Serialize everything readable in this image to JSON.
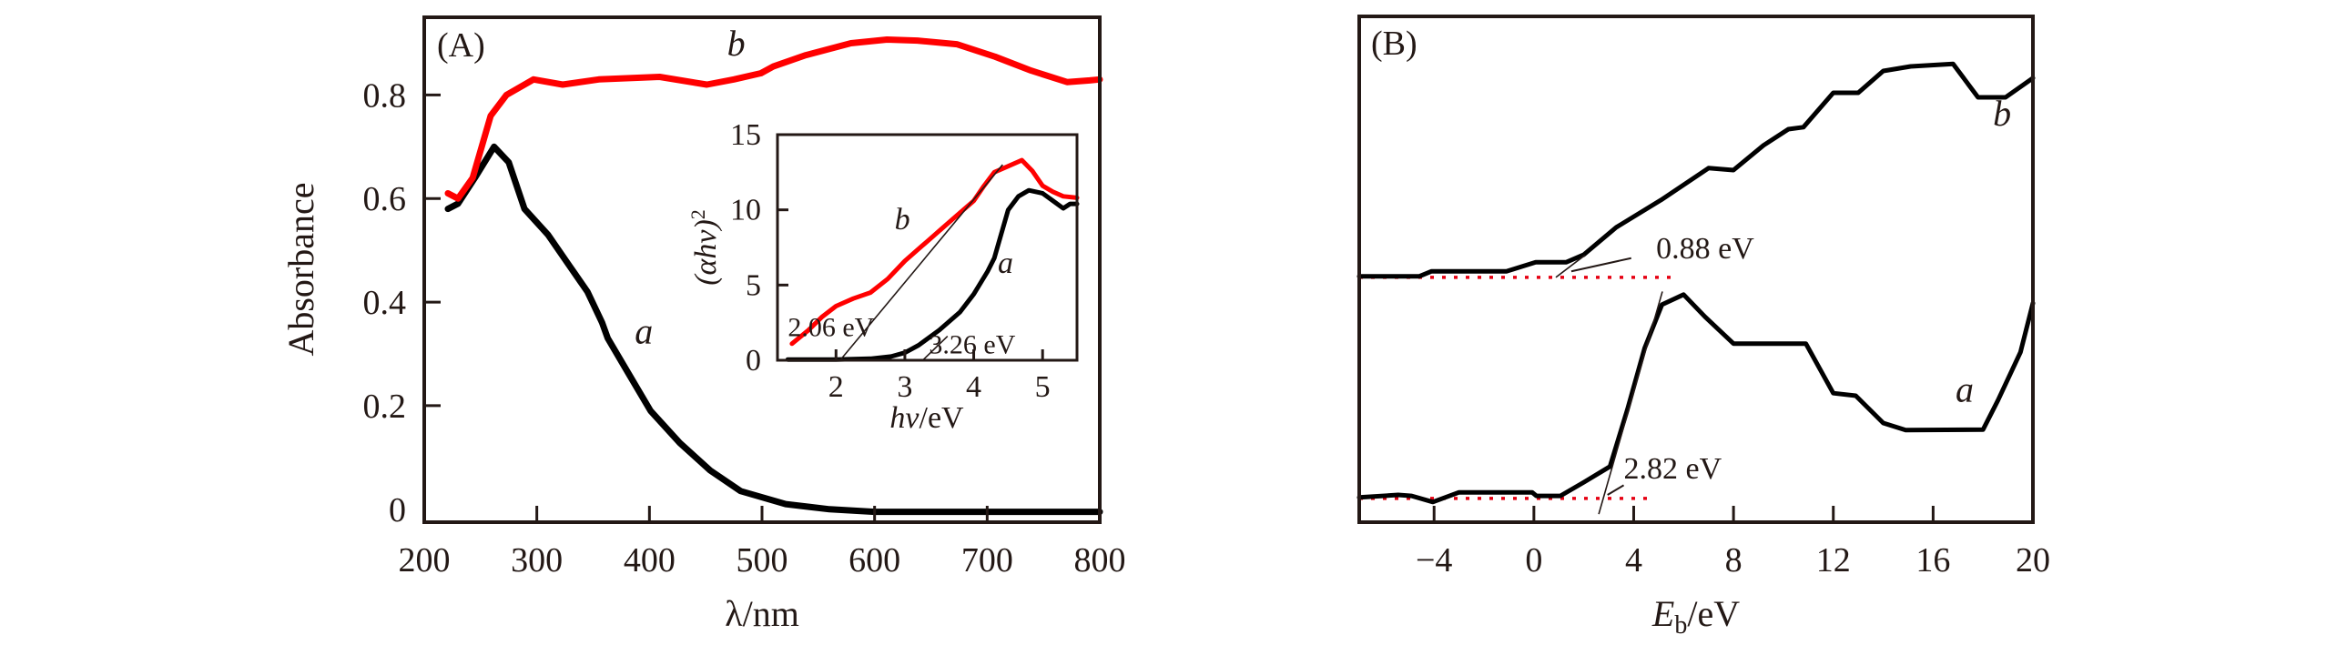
{
  "colors": {
    "axis": "#231815",
    "series_black": "#000000",
    "series_red": "#ff0000",
    "baseline_red": "#e60012"
  },
  "chart_data": [
    {
      "id": "panel-A",
      "type": "line",
      "panel_label": "(A)",
      "title": "",
      "xlabel": "λ/nm",
      "ylabel": "Absorbance",
      "xlim": [
        200,
        800
      ],
      "ylim": [
        -0.025,
        0.95
      ],
      "xticks": [
        200,
        300,
        400,
        500,
        600,
        700,
        800
      ],
      "yticks": [
        0,
        0.2,
        0.4,
        0.6,
        0.8
      ],
      "ytick_labels": [
        "0",
        "0.2",
        "0.4",
        "0.6",
        "0.8"
      ],
      "grid": false,
      "series": [
        {
          "name": "a",
          "color": "#000000",
          "x": [
            221,
            230,
            245,
            262,
            275,
            289,
            310,
            329,
            345,
            358,
            363,
            382,
            401,
            427,
            454,
            481,
            521,
            560,
            600,
            650,
            700,
            750,
            800
          ],
          "y": [
            0.58,
            0.59,
            0.64,
            0.7,
            0.67,
            0.58,
            0.53,
            0.47,
            0.42,
            0.36,
            0.33,
            0.26,
            0.19,
            0.128,
            0.075,
            0.035,
            0.01,
            0.0,
            -0.005,
            -0.005,
            -0.005,
            -0.005,
            -0.005
          ]
        },
        {
          "name": "b",
          "color": "#ff0000",
          "x": [
            221,
            230,
            243,
            259,
            273,
            297,
            323,
            355,
            409,
            451,
            475,
            499,
            510,
            539,
            579,
            611,
            638,
            673,
            707,
            739,
            771,
            791,
            800
          ],
          "y": [
            0.61,
            0.6,
            0.64,
            0.76,
            0.8,
            0.83,
            0.82,
            0.83,
            0.835,
            0.82,
            0.83,
            0.842,
            0.855,
            0.877,
            0.9,
            0.907,
            0.905,
            0.898,
            0.874,
            0.847,
            0.825,
            0.828,
            0.83
          ]
        }
      ],
      "curve_labels": [
        {
          "text": "a",
          "x": 387,
          "y": 0.32
        },
        {
          "text": "b",
          "x": 469,
          "y": 0.876
        }
      ],
      "inset": {
        "type": "line",
        "xlabel_italic": "hν",
        "xlabel_rest": "/eV",
        "ylabel_italic": "(αhν)",
        "ylabel_sup": "2",
        "xlim": [
          1.15,
          5.5
        ],
        "ylim": [
          0,
          15
        ],
        "xticks": [
          2,
          3,
          4,
          5
        ],
        "yticks": [
          0,
          5,
          10,
          15
        ],
        "series": [
          {
            "name": "a",
            "color": "#000000",
            "x": [
              1.3,
              2.0,
              2.5,
              2.8,
              3.0,
              3.2,
              3.5,
              3.8,
              4.0,
              4.2,
              4.3,
              4.4,
              4.5,
              4.65,
              4.8,
              5.0,
              5.15,
              5.3,
              5.4,
              5.5
            ],
            "y": [
              0.05,
              0.05,
              0.1,
              0.25,
              0.5,
              1.0,
              2.0,
              3.2,
              4.4,
              5.9,
              6.8,
              8.4,
              10.0,
              10.9,
              11.3,
              11.1,
              10.6,
              10.1,
              10.4,
              10.4
            ]
          },
          {
            "name": "b",
            "color": "#ff0000",
            "x": [
              1.36,
              1.6,
              1.8,
              2.0,
              2.25,
              2.5,
              2.75,
              3.0,
              3.25,
              3.5,
              3.75,
              4.0,
              4.15,
              4.3,
              4.5,
              4.7,
              4.85,
              5.0,
              5.15,
              5.3,
              5.5
            ],
            "y": [
              1.1,
              2.0,
              2.9,
              3.6,
              4.1,
              4.5,
              5.4,
              6.6,
              7.6,
              8.6,
              9.6,
              10.6,
              11.6,
              12.5,
              12.9,
              13.3,
              12.6,
              11.6,
              11.2,
              10.9,
              10.8
            ]
          }
        ],
        "tangents": [
          {
            "series": "b",
            "from": [
              2.06,
              0
            ],
            "to": [
              4.42,
              13.0
            ]
          },
          {
            "series": "a",
            "from": [
              3.26,
              0
            ],
            "to": [
              3.62,
              1.6
            ]
          }
        ],
        "annotations": [
          {
            "text": "2.06 eV",
            "x": 1.3,
            "y": 1.6
          },
          {
            "text": "3.26 eV",
            "x": 3.35,
            "y": 0.45
          }
        ],
        "curve_labels": [
          {
            "text": "b",
            "x": 2.85,
            "y": 8.7
          },
          {
            "text": "a",
            "x": 4.35,
            "y": 5.8
          }
        ]
      }
    },
    {
      "id": "panel-B",
      "type": "line",
      "panel_label": "(B)",
      "title": "",
      "xlabel_italic": "E",
      "xlabel_sub": "b",
      "xlabel_rest": "/eV",
      "ylabel": "",
      "y_units": "arbitrary (0 = axis bottom, 100 = axis top)",
      "xlim": [
        -7,
        20
      ],
      "ylim": [
        0,
        100
      ],
      "xticks": [
        -4,
        0,
        4,
        8,
        12,
        16,
        20
      ],
      "xtick_labels": [
        "−4",
        "0",
        "4",
        "8",
        "12",
        "16",
        "20"
      ],
      "grid": false,
      "series": [
        {
          "name": "b",
          "color": "#000000",
          "x": [
            -7,
            -4.6,
            -4.1,
            -1.1,
            0.07,
            1.3,
            2.0,
            3.3,
            5.1,
            7.0,
            8.0,
            9.2,
            10.2,
            10.8,
            12.0,
            13.0,
            14.0,
            15.1,
            16.8,
            17.8,
            18.9,
            20.0
          ],
          "y": [
            48.6,
            48.6,
            49.6,
            49.6,
            51.4,
            51.4,
            52.9,
            58.3,
            63.7,
            70.0,
            69.6,
            74.5,
            77.7,
            78.1,
            84.9,
            84.9,
            89.2,
            90.1,
            90.6,
            84.0,
            84.0,
            87.8
          ]
        },
        {
          "name": "a",
          "color": "#000000",
          "x": [
            -7,
            -5.44,
            -4.9,
            -4.05,
            -3.0,
            -0.07,
            0.1,
            1.06,
            2.0,
            3.05,
            3.75,
            4.44,
            5.13,
            6.0,
            6.86,
            8.0,
            9.1,
            10.9,
            12.0,
            12.9,
            14.0,
            14.9,
            18.0,
            18.6,
            19.5,
            20.0
          ],
          "y": [
            4.9,
            5.4,
            5.2,
            4.0,
            5.9,
            5.9,
            5.2,
            5.2,
            7.9,
            11.0,
            22.3,
            34.4,
            43.0,
            45.0,
            40.6,
            35.3,
            35.3,
            35.3,
            25.5,
            25.0,
            19.6,
            18.2,
            18.3,
            24.1,
            33.6,
            43.3
          ]
        }
      ],
      "baselines": [
        {
          "series": "b",
          "y": 48.4,
          "x_range": [
            -7,
            5.7
          ],
          "color": "#e60012"
        },
        {
          "series": "a",
          "y": 4.7,
          "x_range": [
            -7,
            4.8
          ],
          "color": "#e60012"
        }
      ],
      "tangents": [
        {
          "series": "b",
          "from": [
            0.88,
            48.4
          ],
          "to": [
            2.05,
            52.8
          ]
        },
        {
          "series": "a",
          "from": [
            2.6,
            1.6
          ],
          "to": [
            5.15,
            45.6
          ]
        }
      ],
      "annotations": [
        {
          "text": "0.88 eV",
          "x": 4.9,
          "y": 52.2,
          "arrow_to": [
            1.5,
            49.6
          ],
          "arrow_from": [
            3.9,
            52.2
          ]
        },
        {
          "text": "2.82 eV",
          "x": 3.6,
          "y": 8.6,
          "arrow_to": [
            2.95,
            5.4
          ],
          "arrow_from": [
            3.6,
            7.3
          ]
        }
      ],
      "curve_labels": [
        {
          "text": "b",
          "x": 18.4,
          "y": 78.4
        },
        {
          "text": "a",
          "x": 16.9,
          "y": 23.8
        }
      ]
    }
  ]
}
